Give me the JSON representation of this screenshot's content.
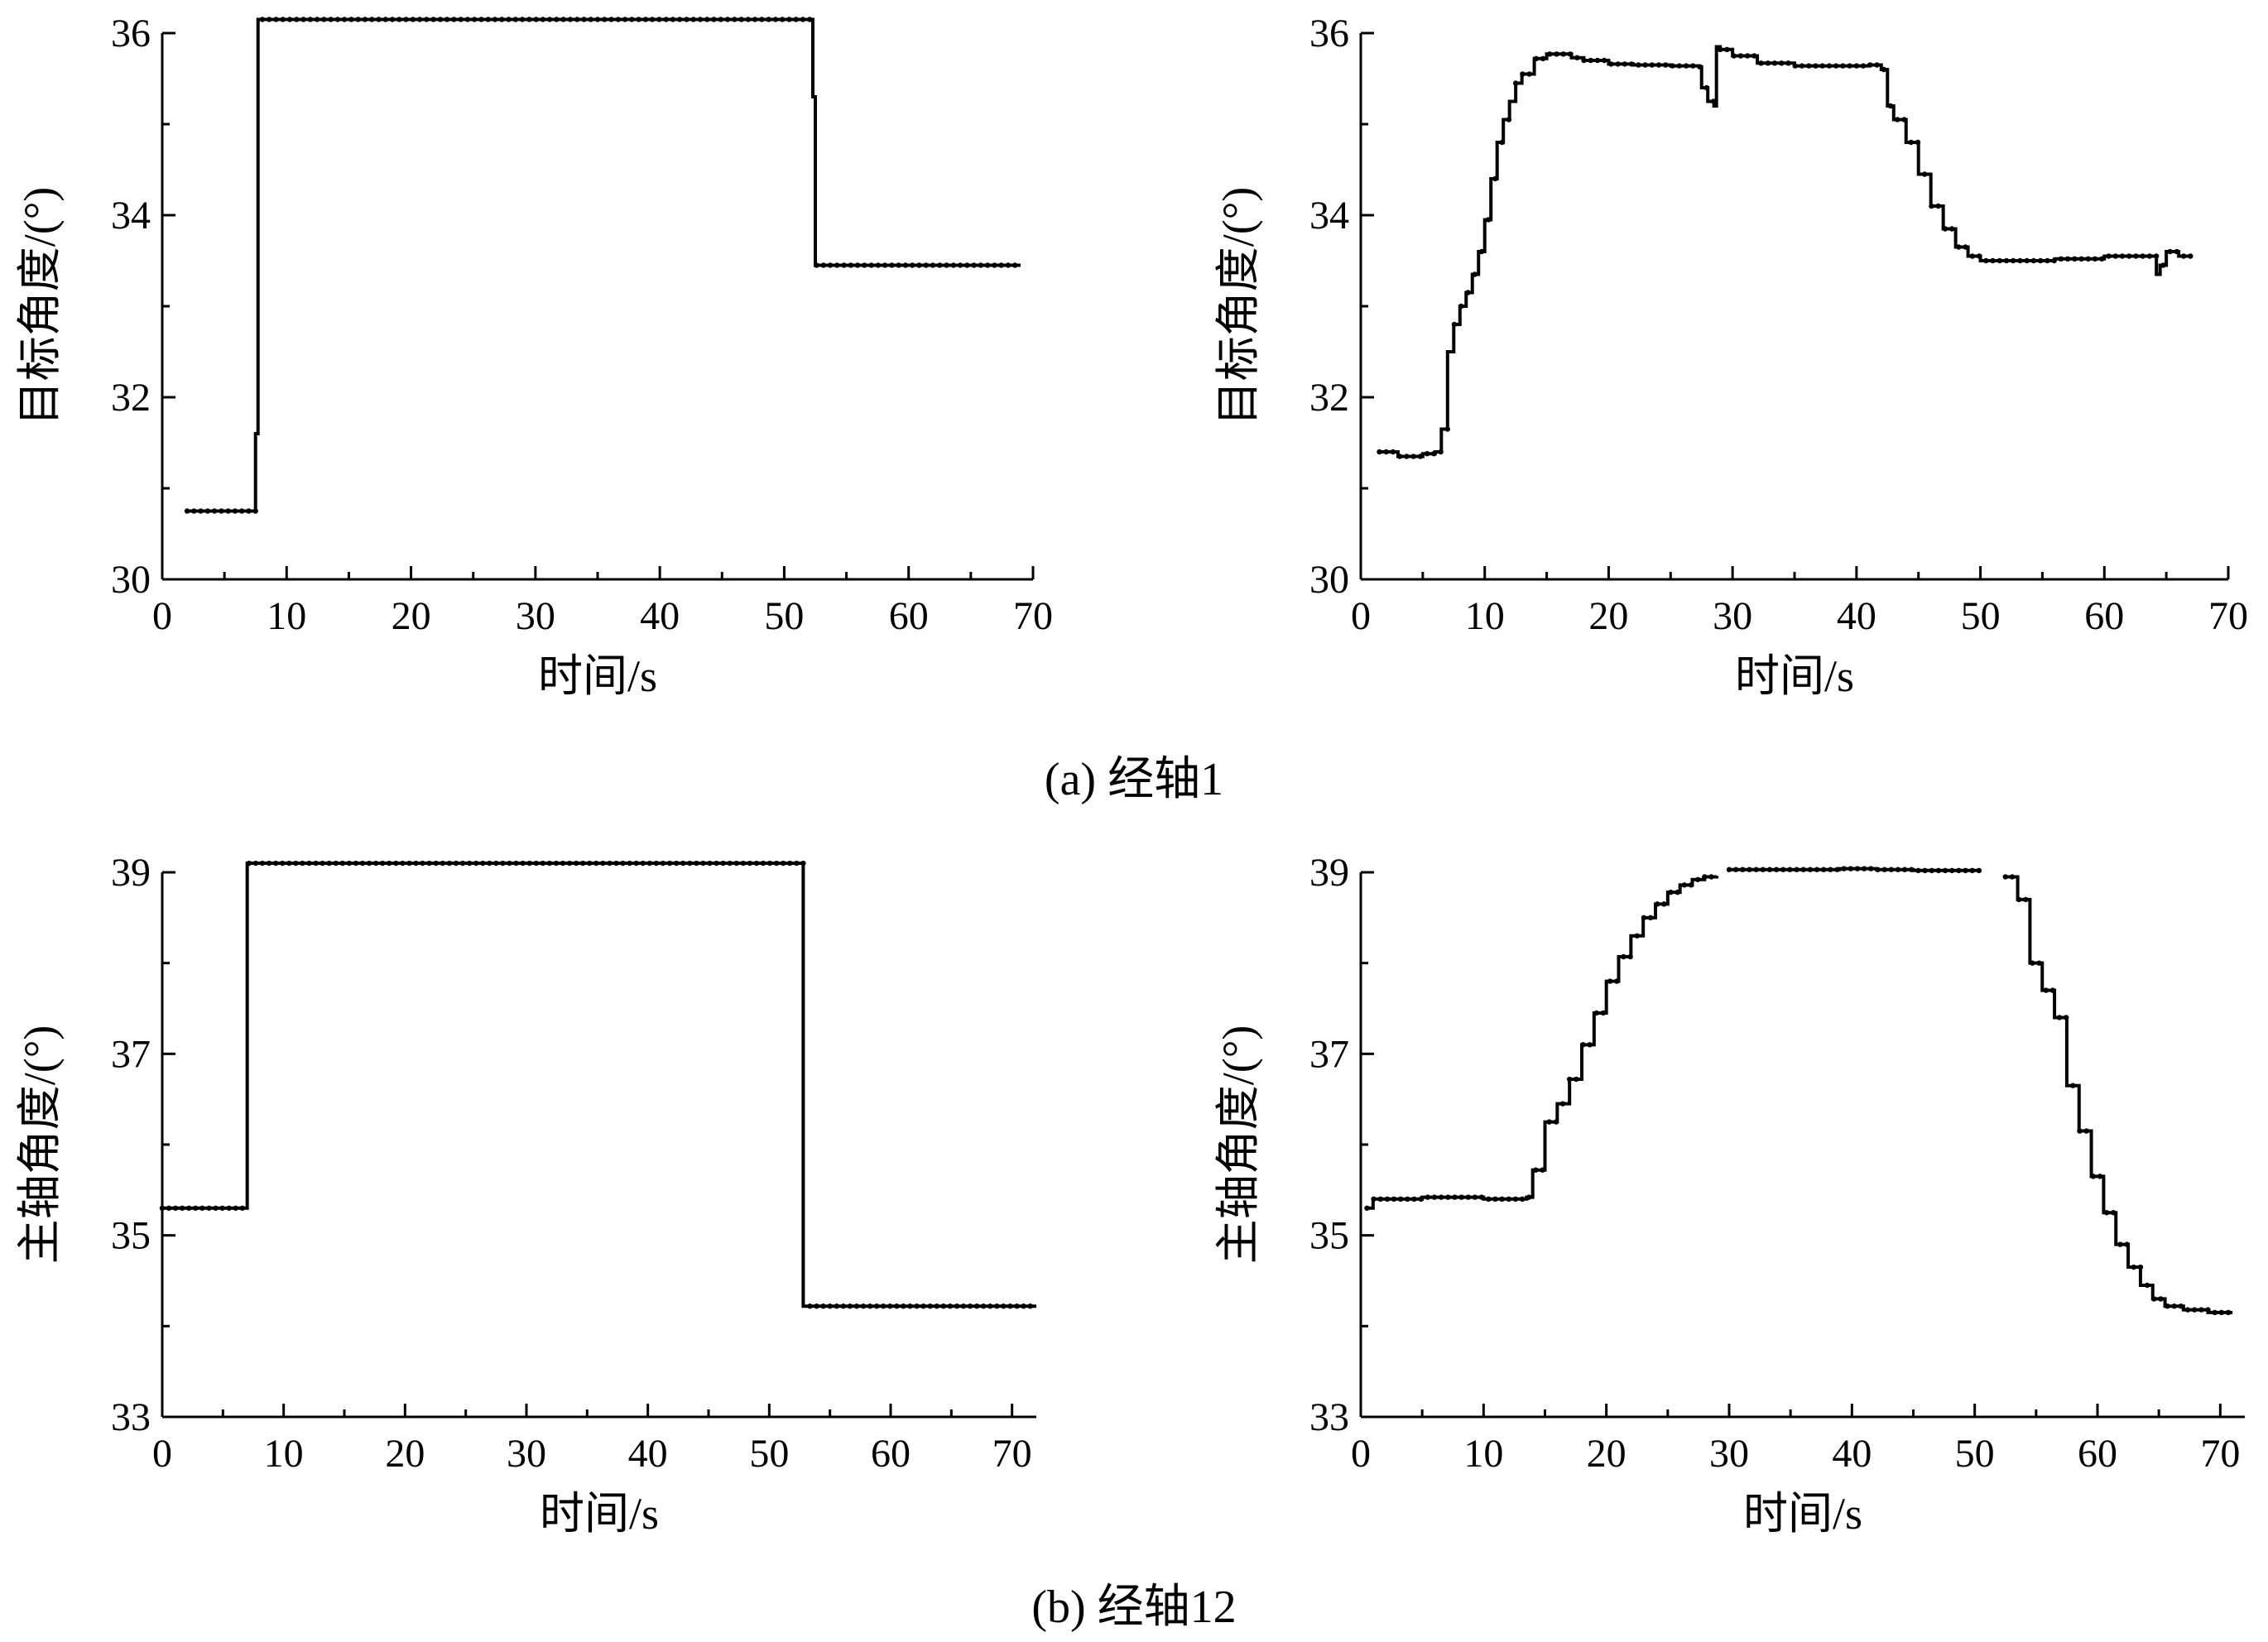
{
  "captions": {
    "a": "(a) 经轴1",
    "b": "(b) 经轴12"
  },
  "chart_data": [
    {
      "type": "line",
      "xlabel": "时间/s",
      "ylabel": "目标角度/(°)",
      "xlim": [
        0,
        70
      ],
      "ylim": [
        30,
        36
      ],
      "xticks": [
        0,
        10,
        20,
        30,
        40,
        50,
        60,
        70
      ],
      "yticks": [
        30,
        32,
        34,
        36
      ],
      "grid": false,
      "series": [
        {
          "x": [
            2,
            7.5,
            7.5,
            7.7,
            7.7,
            52.3,
            52.3,
            52.5,
            52.5,
            69
          ],
          "values": [
            30.75,
            30.75,
            31.6,
            31.6,
            36.15,
            36.15,
            35.3,
            35.3,
            33.45,
            33.45
          ]
        }
      ]
    },
    {
      "type": "line",
      "xlabel": "时间/s",
      "ylabel": "目标角度/(°)",
      "xlim": [
        0,
        70
      ],
      "ylim": [
        30,
        36
      ],
      "xticks": [
        0,
        10,
        20,
        30,
        40,
        50,
        60,
        70
      ],
      "yticks": [
        30,
        32,
        34,
        36
      ],
      "grid": false,
      "series": [
        {
          "x": [
            1.5,
            3,
            5,
            6,
            6.5,
            7,
            7.5,
            8,
            8.5,
            9,
            9.5,
            10,
            10.5,
            11,
            11.5,
            12,
            12.5,
            13,
            14,
            15,
            16,
            17,
            18,
            20,
            22,
            25,
            27.3,
            27.5,
            28,
            28.5,
            28.7,
            29,
            30,
            32,
            35,
            38,
            41,
            42,
            42.5,
            43,
            44,
            45,
            46,
            47,
            48,
            49,
            50,
            51,
            53,
            56,
            60,
            63,
            64.2,
            64.5,
            65,
            66,
            67
          ],
          "values": [
            31.4,
            31.35,
            31.38,
            31.4,
            31.65,
            32.5,
            32.8,
            33.0,
            33.15,
            33.35,
            33.6,
            33.95,
            34.4,
            34.8,
            35.05,
            35.25,
            35.45,
            35.55,
            35.72,
            35.77,
            35.77,
            35.73,
            35.7,
            35.66,
            35.65,
            35.64,
            35.63,
            35.4,
            35.25,
            35.2,
            35.85,
            35.82,
            35.75,
            35.67,
            35.64,
            35.64,
            35.65,
            35.6,
            35.2,
            35.05,
            34.8,
            34.45,
            34.1,
            33.85,
            33.65,
            33.55,
            33.5,
            33.5,
            33.5,
            33.52,
            33.55,
            33.55,
            33.35,
            33.45,
            33.6,
            33.55,
            33.55
          ]
        }
      ]
    },
    {
      "type": "line",
      "xlabel": "时间/s",
      "ylabel": "主轴角度/(°)",
      "xlim": [
        0,
        72
      ],
      "ylim": [
        33,
        39
      ],
      "xticks": [
        0,
        10,
        20,
        30,
        40,
        50,
        60,
        70
      ],
      "yticks": [
        33,
        35,
        37,
        39
      ],
      "grid": false,
      "series": [
        {
          "x": [
            0,
            7,
            7,
            52.8,
            52.8,
            72
          ],
          "values": [
            35.3,
            35.3,
            39.1,
            39.1,
            34.22,
            34.22
          ]
        }
      ]
    },
    {
      "type": "line",
      "xlabel": "时间/s",
      "ylabel": "主轴角度/(°)",
      "xlim": [
        0,
        72
      ],
      "ylim": [
        33,
        39
      ],
      "xticks": [
        0,
        10,
        20,
        30,
        40,
        50,
        60,
        70
      ],
      "yticks": [
        33,
        35,
        37,
        39
      ],
      "grid": false,
      "series": [
        {
          "x": [
            0.5,
            1,
            5,
            10,
            13.5,
            14,
            15,
            16,
            17,
            18,
            19,
            20,
            21,
            22,
            23,
            24,
            25,
            26,
            27,
            28,
            29
          ],
          "values": [
            35.3,
            35.4,
            35.42,
            35.4,
            35.42,
            35.72,
            36.25,
            36.45,
            36.72,
            37.1,
            37.45,
            37.8,
            38.07,
            38.3,
            38.5,
            38.65,
            38.78,
            38.86,
            38.92,
            38.95,
            38.96
          ]
        },
        {
          "x": [
            30,
            33,
            36,
            39,
            42,
            45,
            48,
            50.5
          ],
          "values": [
            39.03,
            39.03,
            39.03,
            39.04,
            39.03,
            39.02,
            39.02,
            39.02
          ]
        },
        {
          "x": [
            52.5,
            53.5,
            54.5,
            55.5,
            56.5,
            57.5,
            58.5,
            59.5,
            60.5,
            61.5,
            62.5,
            63.5,
            64.5,
            65.5,
            67,
            69,
            71
          ],
          "values": [
            38.95,
            38.7,
            38.0,
            37.7,
            37.4,
            36.65,
            36.15,
            35.65,
            35.25,
            34.9,
            34.65,
            34.45,
            34.3,
            34.22,
            34.18,
            34.15,
            34.15
          ]
        }
      ]
    }
  ]
}
